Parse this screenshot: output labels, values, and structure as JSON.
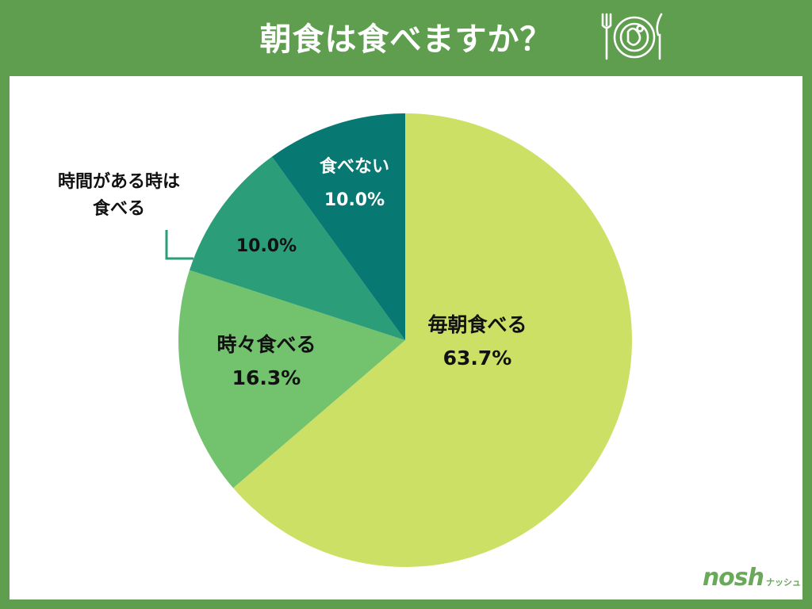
{
  "title": "朝食は食べますか？",
  "chart_data": {
    "type": "pie",
    "start_angle_deg": 0,
    "direction": "clockwise",
    "slices": [
      {
        "label": "毎朝食べる",
        "value": 63.7,
        "value_label": "63.7%",
        "color": "#cce066",
        "text_color": "#111111"
      },
      {
        "label": "時々食べる",
        "value": 16.3,
        "value_label": "16.3%",
        "color": "#72c26e",
        "text_color": "#111111"
      },
      {
        "label": "時間がある時は 食べる",
        "label_lines": [
          "時間がある時は",
          "食べる"
        ],
        "value": 10.0,
        "value_label": "10.0%",
        "color": "#2b9d78",
        "text_color": "#111111",
        "external_label": true
      },
      {
        "label": "食べない",
        "value": 10.0,
        "value_label": "10.0%",
        "color": "#077872",
        "text_color": "#ffffff"
      }
    ]
  },
  "brand": {
    "main": "nosh",
    "sub": "ナッシュ"
  },
  "colors": {
    "frame": "#5e9e4e",
    "leader": "#2b9d78"
  }
}
